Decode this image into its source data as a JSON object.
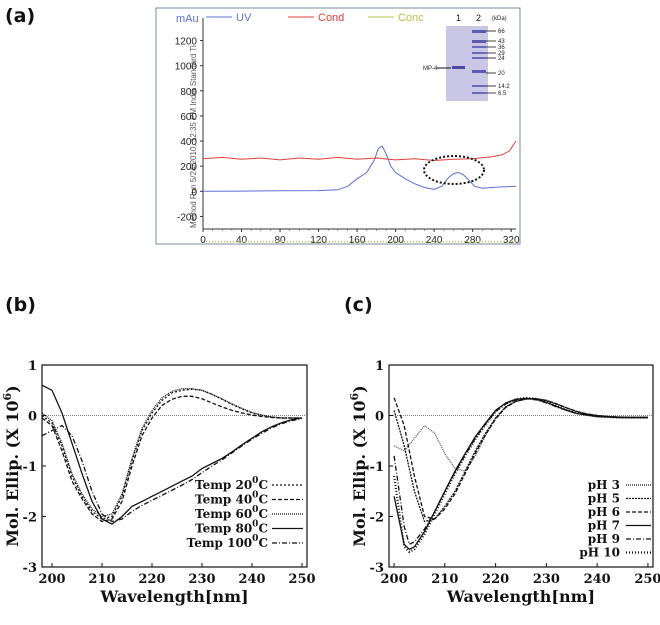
{
  "panels": {
    "a": "(a)",
    "b": "(b)",
    "c": "(c)"
  },
  "chart_data": [
    {
      "id": "a",
      "type": "line",
      "title": "",
      "ylabel": "mAu",
      "xlabel": "",
      "xlim": [
        0,
        325
      ],
      "ylim": [
        -300,
        1300
      ],
      "xticks": [
        0,
        40,
        80,
        120,
        160,
        200,
        240,
        280,
        320
      ],
      "yticks": [
        -200,
        0,
        200,
        400,
        600,
        800,
        1000,
        1200
      ],
      "legend": [
        "UV",
        "Cond",
        "Conc"
      ],
      "colors": {
        "UV": "#5b6fd1",
        "Cond": "#e0403a",
        "Conc": "#b9c24a"
      },
      "method_text": "Method Run 5/24/2010, 12:35 PM India Standard Ti",
      "annotation": "dotted ellipse around UV peak near 265",
      "series": [
        {
          "name": "UV",
          "x": [
            0,
            40,
            80,
            120,
            140,
            150,
            160,
            170,
            178,
            182,
            186,
            190,
            195,
            200,
            210,
            220,
            230,
            240,
            248,
            255,
            260,
            265,
            270,
            276,
            282,
            290,
            300,
            310,
            325
          ],
          "y": [
            0,
            2,
            4,
            6,
            12,
            40,
            100,
            150,
            250,
            340,
            360,
            300,
            200,
            150,
            100,
            60,
            30,
            15,
            40,
            110,
            140,
            150,
            135,
            90,
            40,
            25,
            30,
            35,
            40
          ]
        },
        {
          "name": "Cond",
          "x": [
            0,
            20,
            40,
            60,
            80,
            100,
            120,
            140,
            160,
            180,
            200,
            220,
            240,
            260,
            280,
            300,
            310,
            318,
            325
          ],
          "y": [
            260,
            270,
            255,
            265,
            250,
            265,
            255,
            270,
            255,
            265,
            250,
            260,
            245,
            255,
            260,
            275,
            290,
            320,
            400
          ]
        },
        {
          "name": "Conc",
          "x": [
            0,
            325
          ],
          "y": [
            -400,
            -400
          ]
        }
      ],
      "inset_gel": {
        "lanes": [
          "1",
          "2"
        ],
        "unit": "(kDa)",
        "markers": [
          "66",
          "43",
          "36",
          "29",
          "24",
          "20",
          "14.2",
          "6.5"
        ],
        "band_label": "MP-4"
      }
    },
    {
      "id": "b",
      "type": "line",
      "xlabel": "Wavelength[nm]",
      "ylabel": "Mol. Ellip. (X 10",
      "ylabel_sup": "6",
      "ylabel_close": ")",
      "xlim": [
        198,
        251
      ],
      "ylim": [
        -3,
        1
      ],
      "xticks": [
        200,
        210,
        220,
        230,
        240,
        250
      ],
      "yticks": [
        1,
        0,
        -1,
        -2,
        -3
      ],
      "legend_sup": "0",
      "series": [
        {
          "name": "Temp 20",
          "unit": "C",
          "dash": "2,2",
          "x": [
            198,
            200,
            202,
            204,
            206,
            208,
            210,
            212,
            214,
            216,
            218,
            220,
            222,
            224,
            226,
            228,
            230,
            232,
            234,
            236,
            238,
            240,
            242,
            244,
            246,
            248,
            250
          ],
          "y": [
            0,
            -0.15,
            -0.6,
            -1.2,
            -1.6,
            -1.9,
            -2.05,
            -2.0,
            -1.6,
            -0.9,
            -0.3,
            0.05,
            0.3,
            0.45,
            0.5,
            0.52,
            0.5,
            0.42,
            0.32,
            0.22,
            0.13,
            0.05,
            0,
            -0.03,
            -0.05,
            -0.05,
            -0.05
          ]
        },
        {
          "name": "Temp 40",
          "unit": "C",
          "dash": "4,2",
          "x": [
            198,
            200,
            202,
            204,
            206,
            208,
            210,
            212,
            214,
            216,
            218,
            220,
            222,
            224,
            226,
            228,
            230,
            232,
            234,
            236,
            238,
            240,
            242,
            244,
            246,
            248,
            250
          ],
          "y": [
            -0.05,
            -0.2,
            -0.7,
            -1.3,
            -1.65,
            -1.95,
            -2.1,
            -2.05,
            -1.7,
            -1.0,
            -0.4,
            -0.05,
            0.2,
            0.32,
            0.38,
            0.38,
            0.33,
            0.25,
            0.17,
            0.1,
            0.05,
            0.01,
            -0.02,
            -0.04,
            -0.05,
            -0.05,
            -0.05
          ]
        },
        {
          "name": "Temp 60",
          "unit": "C",
          "dash": "1,1",
          "x": [
            198,
            200,
            202,
            204,
            206,
            208,
            210,
            212,
            214,
            216,
            218,
            220,
            222,
            224,
            226,
            228,
            230,
            232,
            234,
            236,
            238,
            240,
            242,
            244,
            246,
            248,
            250
          ],
          "y": [
            0.05,
            -0.1,
            -0.55,
            -1.15,
            -1.55,
            -1.85,
            -2.0,
            -1.95,
            -1.55,
            -0.85,
            -0.25,
            0.1,
            0.35,
            0.48,
            0.53,
            0.53,
            0.5,
            0.42,
            0.33,
            0.23,
            0.14,
            0.06,
            0.01,
            -0.03,
            -0.05,
            -0.05,
            -0.05
          ]
        },
        {
          "name": "Temp 80",
          "unit": "C",
          "dash": "",
          "x": [
            198,
            200,
            202,
            204,
            206,
            208,
            210,
            212,
            214,
            216,
            218,
            220,
            222,
            224,
            226,
            228,
            230,
            232,
            234,
            236,
            238,
            240,
            242,
            244,
            246,
            248,
            250
          ],
          "y": [
            0.6,
            0.5,
            0.05,
            -0.55,
            -1.15,
            -1.7,
            -2.05,
            -2.15,
            -2.0,
            -1.8,
            -1.7,
            -1.6,
            -1.5,
            -1.4,
            -1.3,
            -1.2,
            -1.05,
            -0.95,
            -0.85,
            -0.72,
            -0.58,
            -0.45,
            -0.32,
            -0.22,
            -0.14,
            -0.08,
            -0.05
          ]
        },
        {
          "name": "Temp 100",
          "unit": "C",
          "dash": "5,2,1,2",
          "x": [
            198,
            200,
            202,
            204,
            206,
            208,
            210,
            212,
            214,
            216,
            218,
            220,
            222,
            224,
            226,
            228,
            230,
            232,
            234,
            236,
            238,
            240,
            242,
            244,
            246,
            248,
            250
          ],
          "y": [
            -0.4,
            -0.3,
            -0.2,
            -0.4,
            -0.9,
            -1.5,
            -1.95,
            -2.1,
            -2.05,
            -1.9,
            -1.78,
            -1.68,
            -1.58,
            -1.48,
            -1.38,
            -1.27,
            -1.13,
            -1.0,
            -0.88,
            -0.74,
            -0.6,
            -0.47,
            -0.35,
            -0.24,
            -0.16,
            -0.1,
            -0.06
          ]
        }
      ]
    },
    {
      "id": "c",
      "type": "line",
      "xlabel": "Wavelength[nm]",
      "ylabel": "Mol. Ellip. (X 10",
      "ylabel_sup": "6",
      "ylabel_close": ")",
      "xlim": [
        199,
        251
      ],
      "ylim": [
        -3,
        1
      ],
      "xticks": [
        200,
        210,
        220,
        230,
        240,
        250
      ],
      "yticks": [
        1,
        0,
        -1,
        -2,
        -3
      ],
      "series": [
        {
          "name": "pH 3",
          "dash": "1,1",
          "x": [
            200,
            202,
            204,
            206,
            208,
            210,
            212,
            214,
            216,
            218,
            220,
            222,
            224,
            226,
            228,
            230,
            232,
            234,
            236,
            238,
            240,
            242,
            244,
            246,
            248,
            250
          ],
          "y": [
            -0.6,
            -0.7,
            -0.45,
            -0.2,
            -0.35,
            -0.75,
            -1.05,
            -1.1,
            -0.8,
            -0.4,
            -0.05,
            0.18,
            0.28,
            0.32,
            0.33,
            0.3,
            0.23,
            0.15,
            0.08,
            0.03,
            0,
            -0.02,
            -0.03,
            -0.04,
            -0.04,
            -0.04
          ]
        },
        {
          "name": "pH 5",
          "dash": "2,1",
          "x": [
            200,
            202,
            204,
            206,
            208,
            210,
            212,
            214,
            216,
            218,
            220,
            222,
            224,
            226,
            228,
            230,
            232,
            234,
            236,
            238,
            240,
            242,
            244,
            246,
            248,
            250
          ],
          "y": [
            0.1,
            -0.6,
            -1.5,
            -2.1,
            -2.05,
            -1.8,
            -1.5,
            -1.1,
            -0.7,
            -0.35,
            -0.05,
            0.17,
            0.28,
            0.33,
            0.33,
            0.3,
            0.23,
            0.15,
            0.08,
            0.03,
            0,
            -0.02,
            -0.03,
            -0.04,
            -0.04,
            -0.04
          ]
        },
        {
          "name": "pH 6",
          "dash": "4,2",
          "x": [
            200,
            202,
            204,
            206,
            208,
            210,
            212,
            214,
            216,
            218,
            220,
            222,
            224,
            226,
            228,
            230,
            232,
            234,
            236,
            238,
            240,
            242,
            244,
            246,
            248,
            250
          ],
          "y": [
            0.35,
            -0.2,
            -1.2,
            -2.0,
            -2.05,
            -1.85,
            -1.55,
            -1.15,
            -0.75,
            -0.38,
            -0.07,
            0.16,
            0.28,
            0.33,
            0.33,
            0.3,
            0.23,
            0.15,
            0.08,
            0.03,
            0,
            -0.02,
            -0.03,
            -0.04,
            -0.04,
            -0.04
          ]
        },
        {
          "name": "pH 7",
          "dash": "",
          "x": [
            200,
            202,
            203,
            204,
            206,
            208,
            210,
            212,
            214,
            216,
            218,
            220,
            222,
            224,
            226,
            228,
            230,
            232,
            234,
            236,
            238,
            240,
            242,
            244,
            246,
            248,
            250
          ],
          "y": [
            -1.6,
            -2.55,
            -2.65,
            -2.6,
            -2.3,
            -1.9,
            -1.5,
            -1.1,
            -0.75,
            -0.42,
            -0.15,
            0.1,
            0.25,
            0.32,
            0.34,
            0.32,
            0.26,
            0.18,
            0.1,
            0.04,
            0.01,
            -0.02,
            -0.03,
            -0.04,
            -0.04,
            -0.04,
            -0.04
          ]
        },
        {
          "name": "pH 9",
          "dash": "5,2,1,2",
          "x": [
            200,
            202,
            203,
            204,
            206,
            208,
            210,
            212,
            214,
            216,
            218,
            220,
            222,
            224,
            226,
            228,
            230,
            232,
            234,
            236,
            238,
            240,
            242,
            244,
            246,
            248,
            250
          ],
          "y": [
            -0.8,
            -2.2,
            -2.55,
            -2.5,
            -2.25,
            -1.9,
            -1.5,
            -1.12,
            -0.78,
            -0.45,
            -0.17,
            0.08,
            0.23,
            0.31,
            0.33,
            0.31,
            0.25,
            0.17,
            0.1,
            0.04,
            0.01,
            -0.02,
            -0.03,
            -0.04,
            -0.04,
            -0.04,
            -0.04
          ]
        },
        {
          "name": "pH 10",
          "dash": "1,2",
          "x": [
            200,
            202,
            203,
            204,
            206,
            208,
            210,
            212,
            214,
            216,
            218,
            220,
            222,
            224,
            226,
            228,
            230,
            232,
            234,
            236,
            238,
            240,
            242,
            244,
            246,
            248,
            250
          ],
          "y": [
            -1.2,
            -2.6,
            -2.7,
            -2.65,
            -2.35,
            -1.95,
            -1.55,
            -1.15,
            -0.8,
            -0.47,
            -0.18,
            0.08,
            0.24,
            0.32,
            0.35,
            0.33,
            0.27,
            0.19,
            0.11,
            0.05,
            0.01,
            -0.02,
            -0.03,
            -0.04,
            -0.04,
            -0.04,
            -0.04
          ]
        }
      ]
    }
  ]
}
